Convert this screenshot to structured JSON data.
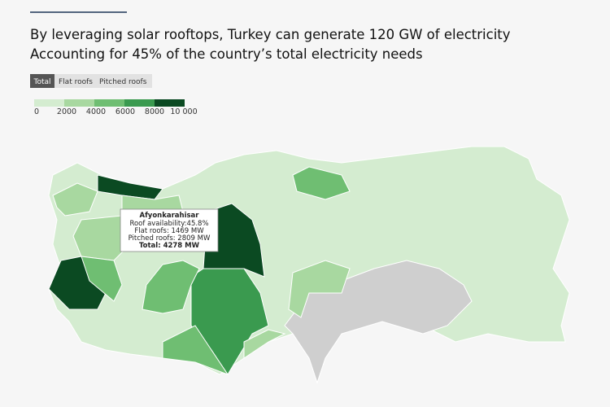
{
  "header": {
    "title_lines": [
      "By leveraging solar rooftops, Turkey can generate 120 GW of electricity",
      "Accounting for 45% of the country’s total electricity needs"
    ]
  },
  "tabs": [
    "Total",
    "Flat roofs",
    "Pitched roofs"
  ],
  "legend": {
    "labels": [
      "0",
      "2000",
      "4000",
      "6000",
      "8000",
      "10 000"
    ]
  },
  "tooltip": {
    "name": "Afyonkarahisar",
    "lines": [
      "Roof availability:45.8%",
      "Flat roofs: 1469 MW",
      "Pitched roofs: 2809 MW",
      "Total: 4278 MW"
    ]
  }
}
